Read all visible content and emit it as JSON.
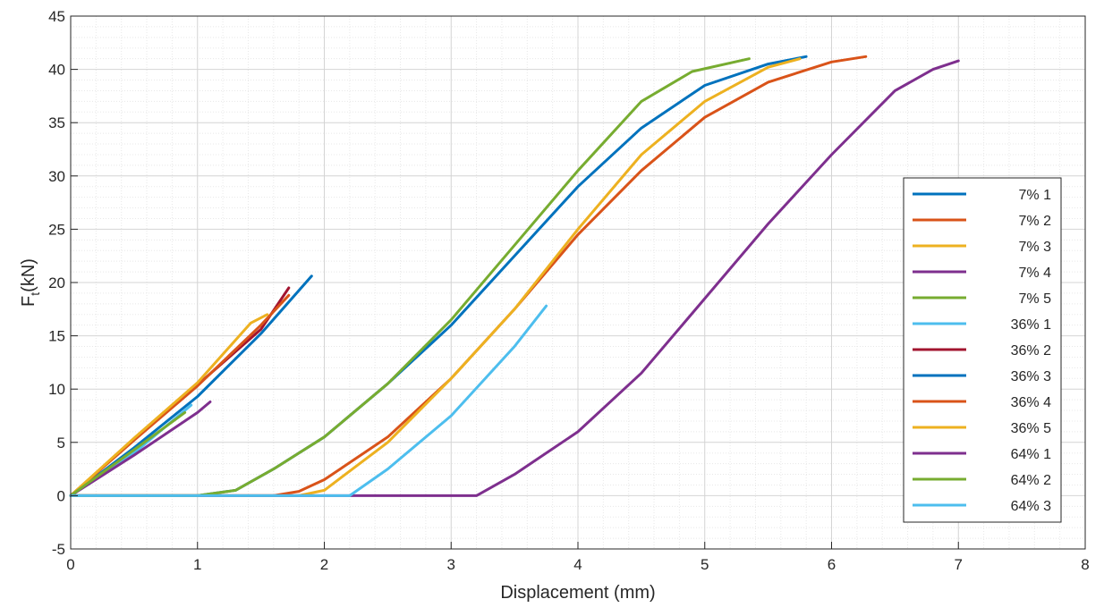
{
  "chart_data": {
    "type": "line",
    "title": "",
    "xlabel": "Displacement (mm)",
    "ylabel": {
      "main": "F",
      "sub": "t",
      "rest": "(kN)"
    },
    "xlim": [
      0,
      8
    ],
    "ylim": [
      -5,
      45
    ],
    "xticks": [
      "0",
      "1",
      "2",
      "3",
      "4",
      "5",
      "6",
      "7",
      "8"
    ],
    "yticks": [
      "-5",
      "0",
      "5",
      "10",
      "15",
      "20",
      "25",
      "30",
      "35",
      "40",
      "45"
    ],
    "grid": "major and minor",
    "legend_position": "right",
    "series": [
      {
        "name": "7% 1",
        "color": "#0072BD",
        "points": [
          [
            0,
            0
          ],
          [
            1,
            0
          ],
          [
            1.3,
            0.5
          ],
          [
            1.6,
            2.5
          ],
          [
            2,
            5.5
          ],
          [
            2.5,
            10.5
          ],
          [
            3,
            16
          ],
          [
            3.5,
            22.5
          ],
          [
            4,
            29
          ],
          [
            4.5,
            34.5
          ],
          [
            5,
            38.5
          ],
          [
            5.5,
            40.5
          ],
          [
            5.8,
            41.2
          ]
        ]
      },
      {
        "name": "7% 2",
        "color": "#D95319",
        "points": [
          [
            0,
            0
          ],
          [
            1.6,
            0
          ],
          [
            1.8,
            0.4
          ],
          [
            2,
            1.5
          ],
          [
            2.5,
            5.5
          ],
          [
            3,
            11
          ],
          [
            3.5,
            17.5
          ],
          [
            4,
            24.5
          ],
          [
            4.5,
            30.5
          ],
          [
            5,
            35.5
          ],
          [
            5.5,
            38.8
          ],
          [
            6,
            40.7
          ],
          [
            6.27,
            41.2
          ]
        ]
      },
      {
        "name": "7% 3",
        "color": "#EDB120",
        "points": [
          [
            0,
            0
          ],
          [
            1.8,
            0
          ],
          [
            2,
            0.5
          ],
          [
            2.5,
            5
          ],
          [
            3,
            11
          ],
          [
            3.5,
            17.5
          ],
          [
            4,
            25
          ],
          [
            4.5,
            32
          ],
          [
            5,
            37
          ],
          [
            5.5,
            40.2
          ],
          [
            5.75,
            41
          ]
        ]
      },
      {
        "name": "7% 4",
        "color": "#7E2F8E",
        "points": [
          [
            0,
            0
          ],
          [
            3.2,
            0
          ],
          [
            3.5,
            2
          ],
          [
            4,
            6
          ],
          [
            4.5,
            11.5
          ],
          [
            5,
            18.5
          ],
          [
            5.5,
            25.5
          ],
          [
            6,
            32
          ],
          [
            6.5,
            38
          ],
          [
            6.8,
            40
          ],
          [
            7,
            40.8
          ]
        ]
      },
      {
        "name": "7% 5",
        "color": "#77AC30",
        "points": [
          [
            0,
            0
          ],
          [
            1,
            0
          ],
          [
            1.3,
            0.5
          ],
          [
            1.6,
            2.5
          ],
          [
            2,
            5.5
          ],
          [
            2.5,
            10.5
          ],
          [
            3,
            16.5
          ],
          [
            3.5,
            23.5
          ],
          [
            4,
            30.5
          ],
          [
            4.5,
            37
          ],
          [
            4.9,
            39.8
          ],
          [
            5.35,
            41
          ]
        ]
      },
      {
        "name": "36% 1",
        "color": "#4DBEEE",
        "points": [
          [
            0,
            0
          ],
          [
            0.5,
            4
          ],
          [
            0.95,
            8.5
          ]
        ]
      },
      {
        "name": "36% 2",
        "color": "#A2142F",
        "points": [
          [
            0,
            0
          ],
          [
            0.5,
            5.3
          ],
          [
            1,
            10.4
          ],
          [
            1.5,
            15.6
          ],
          [
            1.72,
            19.5
          ]
        ]
      },
      {
        "name": "36% 3",
        "color": "#0072BD",
        "points": [
          [
            0,
            0
          ],
          [
            0.5,
            4.5
          ],
          [
            1,
            9.3
          ],
          [
            1.5,
            15.2
          ],
          [
            1.9,
            20.6
          ]
        ]
      },
      {
        "name": "36% 4",
        "color": "#D95319",
        "points": [
          [
            0,
            0
          ],
          [
            0.5,
            5.2
          ],
          [
            1,
            10.3
          ],
          [
            1.5,
            16
          ],
          [
            1.72,
            18.8
          ]
        ]
      },
      {
        "name": "36% 5",
        "color": "#EDB120",
        "points": [
          [
            0,
            0
          ],
          [
            0.5,
            5.4
          ],
          [
            1,
            10.6
          ],
          [
            1.42,
            16.2
          ],
          [
            1.55,
            17
          ]
        ]
      },
      {
        "name": "64% 1",
        "color": "#7E2F8E",
        "points": [
          [
            0,
            0
          ],
          [
            0.5,
            3.8
          ],
          [
            1,
            7.8
          ],
          [
            1.1,
            8.8
          ]
        ]
      },
      {
        "name": "64% 2",
        "color": "#77AC30",
        "points": [
          [
            0,
            0
          ],
          [
            0.5,
            4.3
          ],
          [
            0.9,
            7.8
          ]
        ]
      },
      {
        "name": "64% 3",
        "color": "#4DBEEE",
        "points": [
          [
            0,
            0
          ],
          [
            2.2,
            0
          ],
          [
            2.5,
            2.5
          ],
          [
            3,
            7.5
          ],
          [
            3.5,
            14
          ],
          [
            3.75,
            17.8
          ]
        ]
      }
    ]
  }
}
